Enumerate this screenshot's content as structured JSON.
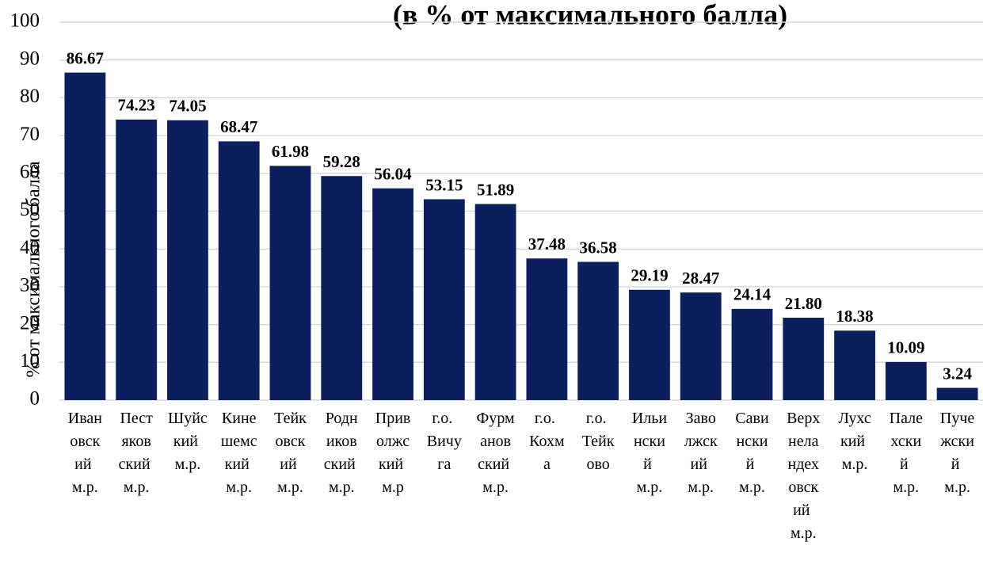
{
  "chart_data": {
    "type": "bar",
    "title": "(в % от максимального балла)",
    "y_label": "% от максимального балла",
    "categories": [
      "Ивановский м.р.",
      "Пестяковский м.р.",
      "Шуйский м.р.",
      "Кинешемский м.р.",
      "Тейковский м.р.",
      "Родниковский м.р.",
      "Приволжский м.р",
      "г.о. Вичуга",
      "Фурмановский м.р.",
      "г.о. Кохма",
      "г.о. Тейково",
      "Ильинский м.р.",
      "Заволжский м.р.",
      "Савинский м.р.",
      "Верхнеландеховский м.р.",
      "Лухский м.р.",
      "Палехский м.р.",
      "Пучежский м.р."
    ],
    "values": [
      86.67,
      74.23,
      74.05,
      68.47,
      61.98,
      59.28,
      56.04,
      53.15,
      51.89,
      37.48,
      36.58,
      29.19,
      28.47,
      24.14,
      21.8,
      18.38,
      10.09,
      3.24
    ],
    "value_labels": [
      "86.67",
      "74.23",
      "74.05",
      "68.47",
      "61.98",
      "59.28",
      "56.04",
      "53.15",
      "51.89",
      "37.48",
      "36.58",
      "29.19",
      "28.47",
      "24.14",
      "21.80",
      "18.38",
      "10.09",
      "3.24"
    ],
    "color": "#0b1f5e",
    "ylim": [
      0,
      100
    ],
    "yticks": [
      0,
      10,
      20,
      30,
      40,
      50,
      60,
      70,
      80,
      90,
      100
    ],
    "grid": true
  }
}
